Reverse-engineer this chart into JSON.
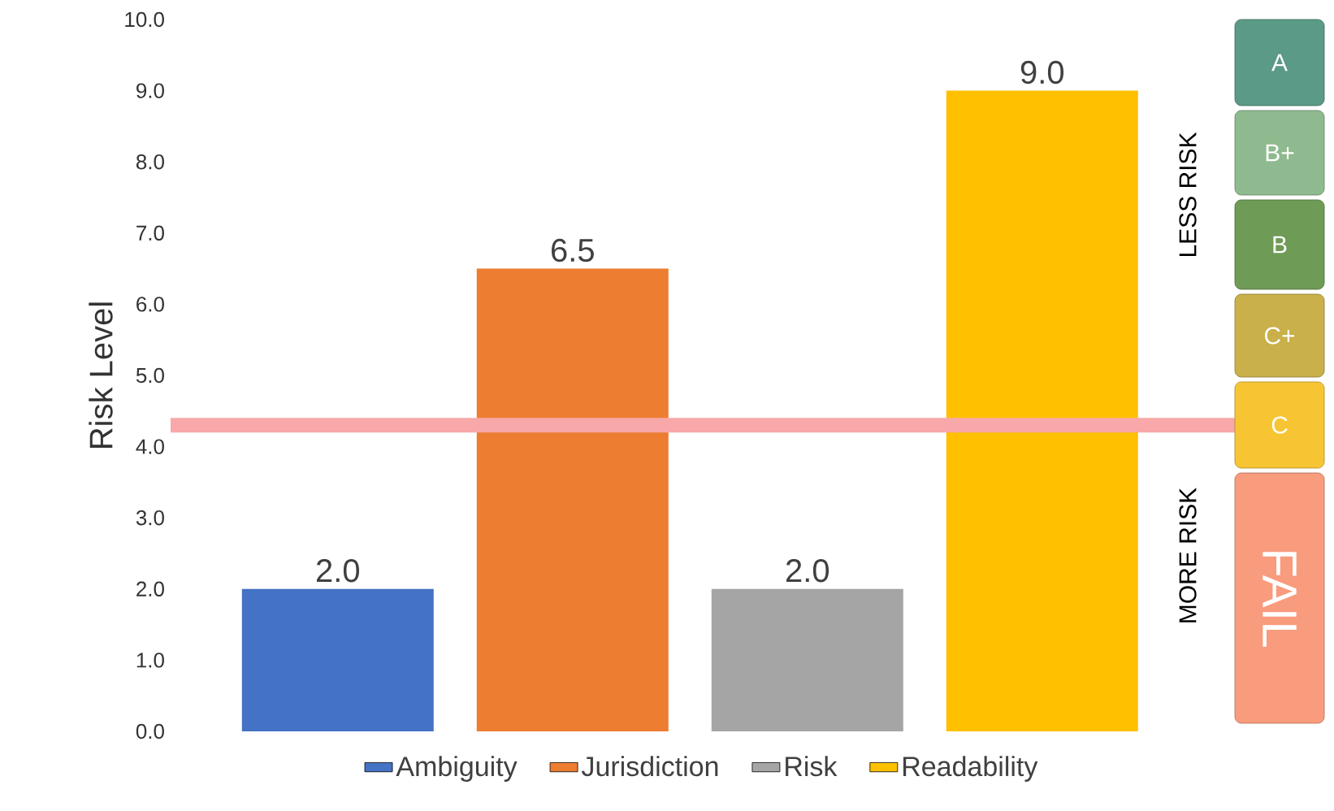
{
  "chart_data": {
    "type": "bar",
    "ylabel": "Risk Level",
    "categories": [
      null
    ],
    "series": [
      {
        "name": "Ambiguity",
        "color": "#4472c4",
        "values": [
          2.0
        ],
        "value_labels": [
          "2.0"
        ]
      },
      {
        "name": "Jurisdiction",
        "color": "#ed7d31",
        "values": [
          6.5
        ],
        "value_labels": [
          "6.5"
        ]
      },
      {
        "name": "Risk",
        "color": "#a5a5a5",
        "values": [
          2.0
        ],
        "value_labels": [
          "2.0"
        ]
      },
      {
        "name": "Readability",
        "color": "#ffc000",
        "values": [
          9.0
        ],
        "value_labels": [
          "9.0"
        ]
      }
    ],
    "ylim": [
      0,
      10
    ],
    "yticks": [
      {
        "value": 0,
        "label": "0.0"
      },
      {
        "value": 1,
        "label": "1.0"
      },
      {
        "value": 2,
        "label": "2.0"
      },
      {
        "value": 3,
        "label": "3.0"
      },
      {
        "value": 4,
        "label": "4.0"
      },
      {
        "value": 5,
        "label": "5.0"
      },
      {
        "value": 6,
        "label": "6.0"
      },
      {
        "value": 7,
        "label": "7.0"
      },
      {
        "value": 8,
        "label": "8.0"
      },
      {
        "value": 9,
        "label": "9.0"
      },
      {
        "value": 10,
        "label": "10.0"
      }
    ],
    "ref_lines": [
      {
        "axis": "y",
        "value": 4.3,
        "color": "#f8a8a8"
      }
    ],
    "annotations": [
      "A",
      "B+",
      "B",
      "C+",
      "C",
      "FAIL",
      "LESS RISK",
      "MORE RISK"
    ],
    "tick_labels": "y",
    "grid": false,
    "legend": "bottom"
  }
}
